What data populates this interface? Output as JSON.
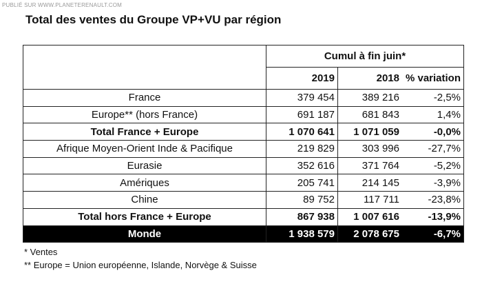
{
  "watermark": "PUBLIÉ SUR WWW.PLANETERENAULT.COM",
  "title": "Total des ventes du Groupe VP+VU par région",
  "table": {
    "group_header": "Cumul à fin juin*",
    "columns": [
      "2019",
      "2018",
      "% variation"
    ],
    "rows": [
      {
        "label": "France",
        "cells": [
          "379 454",
          "389 216",
          "-2,5%"
        ],
        "style": "normal"
      },
      {
        "label": "Europe** (hors France)",
        "cells": [
          "691 187",
          "681 843",
          "1,4%"
        ],
        "style": "normal"
      },
      {
        "label": "Total France + Europe",
        "cells": [
          "1 070 641",
          "1 071 059",
          "-0,0%"
        ],
        "style": "total"
      },
      {
        "label": "Afrique Moyen-Orient Inde & Pacifique",
        "cells": [
          "219 829",
          "303 996",
          "-27,7%"
        ],
        "style": "normal"
      },
      {
        "label": "Eurasie",
        "cells": [
          "352 616",
          "371 764",
          "-5,2%"
        ],
        "style": "normal"
      },
      {
        "label": "Amériques",
        "cells": [
          "205 741",
          "214 145",
          "-3,9%"
        ],
        "style": "normal"
      },
      {
        "label": "Chine",
        "cells": [
          "89 752",
          "117 711",
          "-23,8%"
        ],
        "style": "normal"
      },
      {
        "label": "Total hors France + Europe",
        "cells": [
          "867 938",
          "1 007 616",
          "-13,9%"
        ],
        "style": "total"
      },
      {
        "label": "Monde",
        "cells": [
          "1 938 579",
          "2 078 675",
          "-6,7%"
        ],
        "style": "world"
      }
    ]
  },
  "footnotes": [
    "* Ventes",
    "** Europe = Union européenne, Islande, Norvège & Suisse"
  ]
}
